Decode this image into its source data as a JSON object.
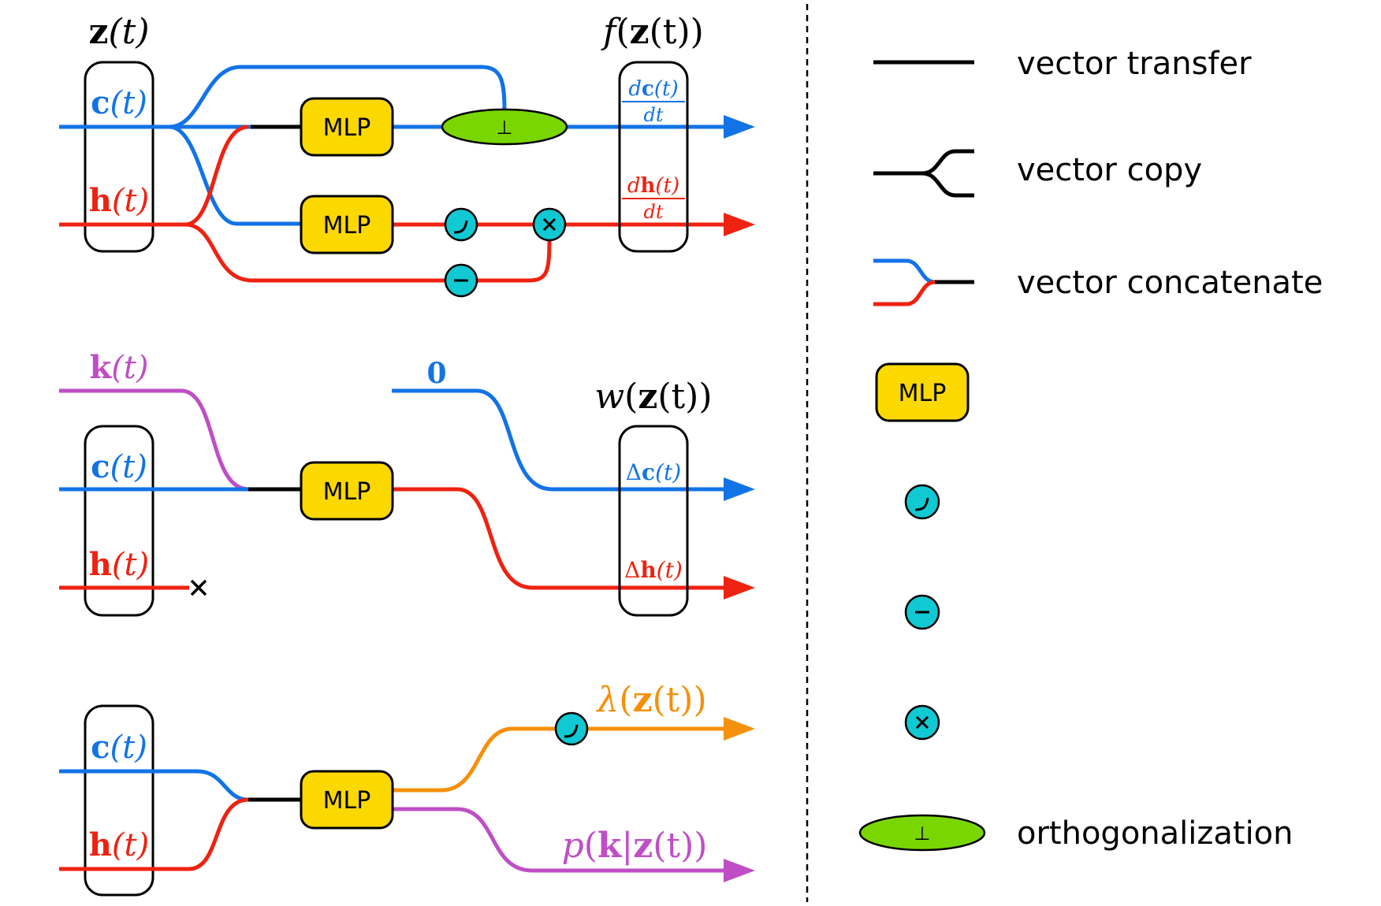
{
  "colors": {
    "blue": "#1273e6",
    "red": "#ee2211",
    "purple": "#bf4ec6",
    "orange": "#f5900c",
    "black": "#000000",
    "mlp_fill": "#fbd900",
    "op_fill": "#11c9d2",
    "orth_fill": "#7ad600"
  },
  "top": {
    "state_label": {
      "bold": "z",
      "rest": "(t)"
    },
    "c_label": {
      "bold": "c",
      "rest": "(t)"
    },
    "h_label": {
      "bold": "h",
      "rest": "(t)"
    },
    "mlp1": "MLP",
    "mlp2": "MLP",
    "orth_symbol": "⊥",
    "output_label": {
      "pre": "f",
      "open": "(",
      "bold": "z",
      "rest": "(t))"
    },
    "dc_num": {
      "d": "d",
      "bold": "c",
      "rest": "(t)"
    },
    "dc_den": "dt",
    "dh_num": {
      "d": "d",
      "bold": "h",
      "rest": "(t)"
    },
    "dh_den": "dt"
  },
  "middle": {
    "k_label": {
      "bold": "k",
      "rest": "(t)"
    },
    "zero_label": "0",
    "c_label": {
      "bold": "c",
      "rest": "(t)"
    },
    "h_label": {
      "bold": "h",
      "rest": "(t)"
    },
    "mlp": "MLP",
    "output_label": {
      "pre": "w",
      "open": "(",
      "bold": "z",
      "rest": "(t))"
    },
    "dc_label": {
      "delta": "Δ",
      "bold": "c",
      "rest": "(t)"
    },
    "dh_label": {
      "delta": "Δ",
      "bold": "h",
      "rest": "(t)"
    }
  },
  "bottom": {
    "c_label": {
      "bold": "c",
      "rest": "(t)"
    },
    "h_label": {
      "bold": "h",
      "rest": "(t)"
    },
    "mlp": "MLP",
    "lambda_label": {
      "pre": "λ",
      "open": "(",
      "bold": "z",
      "rest": "(t))"
    },
    "p_label": {
      "pre": "p",
      "open": "(",
      "bold1": "k",
      "bar": "|",
      "bold2": "z",
      "rest": "(t))"
    }
  },
  "legend": {
    "items": [
      {
        "name": "vector-transfer",
        "label": "vector transfer"
      },
      {
        "name": "vector-copy",
        "label": "vector copy"
      },
      {
        "name": "vector-concatenate",
        "label": "vector concatenate"
      },
      {
        "name": "mlp",
        "glyph": "MLP"
      },
      {
        "name": "softplus-op",
        "glyph": ""
      },
      {
        "name": "negate-op",
        "glyph": "−"
      },
      {
        "name": "multiply-op",
        "glyph": "×"
      },
      {
        "name": "orthogonalization",
        "label": "orthogonalization",
        "glyph": "⊥"
      }
    ]
  }
}
